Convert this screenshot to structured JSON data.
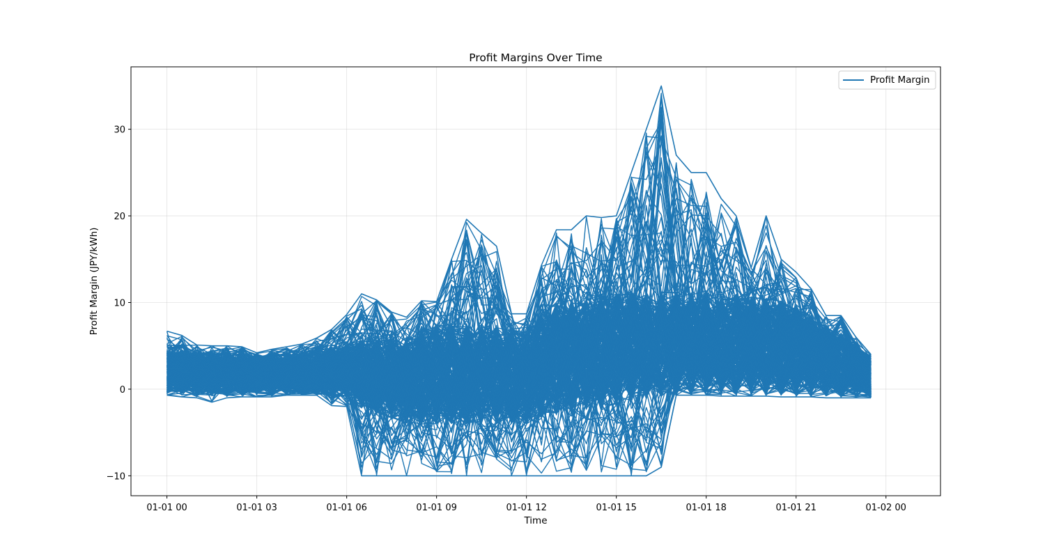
{
  "chart_data": {
    "type": "line",
    "title": "Profit Margins Over Time",
    "xlabel": "Time",
    "ylabel": "Profit Margin (JPY/kWh)",
    "xlim": [
      "2000-01-01 00:00",
      "2000-01-02 00:00"
    ],
    "ylim": [
      -12.3,
      37.2
    ],
    "x_ticks": [
      "01-01 00",
      "01-01 03",
      "01-01 06",
      "01-01 09",
      "01-01 12",
      "01-01 15",
      "01-01 18",
      "01-01 21",
      "01-02 00"
    ],
    "x_tick_hours": [
      0,
      3,
      6,
      9,
      12,
      15,
      18,
      21,
      24
    ],
    "y_ticks": [
      -10,
      0,
      10,
      20,
      30
    ],
    "y_tick_labels": [
      "−10",
      "0",
      "10",
      "20",
      "30"
    ],
    "grid": true,
    "legend_position": "top-right",
    "series": [
      {
        "name": "Profit Margin",
        "color": "#1f77b4",
        "note": "many overlapping daily profiles from 00:00 to 23:30",
        "x_hours": [
          0,
          0.5,
          1,
          1.5,
          2,
          2.5,
          3,
          3.5,
          4,
          4.5,
          5,
          5.5,
          6,
          6.5,
          7,
          7.5,
          8,
          8.5,
          9,
          9.5,
          10,
          10.5,
          11,
          11.5,
          12,
          12.5,
          13,
          13.5,
          14,
          14.5,
          15,
          15.5,
          16,
          16.5,
          17,
          17.5,
          18,
          18.5,
          19,
          19.5,
          20,
          20.5,
          21,
          21.5,
          22,
          22.5,
          23,
          23.5
        ],
        "peak_profile": [
          6.7,
          6.2,
          5.1,
          5.0,
          5.0,
          4.9,
          4.2,
          4.6,
          4.9,
          5.2,
          5.9,
          6.9,
          8.6,
          11.0,
          10.3,
          8.9,
          8.3,
          10.2,
          10.1,
          15.0,
          19.6,
          18.0,
          16.5,
          8.7,
          8.7,
          14.3,
          18.4,
          18.4,
          20.0,
          19.8,
          20.0,
          25.0,
          30.0,
          35.0,
          27.0,
          25.0,
          25.0,
          22.0,
          20.0,
          14.0,
          20.0,
          15.0,
          13.5,
          11.6,
          8.5,
          8.5,
          6.0,
          4.0
        ],
        "trough_profile": [
          -0.7,
          -0.9,
          -1.0,
          -1.5,
          -1.0,
          -0.9,
          -0.9,
          -0.9,
          -0.7,
          -0.7,
          -0.7,
          -1.9,
          -2.0,
          -10.0,
          -10.0,
          -10.0,
          -10.0,
          -10.0,
          -10.0,
          -10.0,
          -10.0,
          -10.0,
          -10.0,
          -10.0,
          -10.0,
          -10.0,
          -10.0,
          -10.0,
          -10.0,
          -10.0,
          -10.0,
          -10.0,
          -10.0,
          -9.0,
          -0.7,
          -0.7,
          -0.7,
          -0.8,
          -0.8,
          -0.8,
          -0.8,
          -0.9,
          -0.9,
          -0.9,
          -1.0,
          -1.0,
          -1.0,
          -1.0
        ],
        "band_high_profile": [
          4.4,
          4.4,
          4.3,
          4.3,
          4.2,
          4.2,
          4.1,
          4.1,
          4.2,
          4.3,
          4.5,
          4.8,
          5.2,
          5.6,
          5.7,
          5.8,
          6.0,
          7.2,
          7.5,
          7.6,
          7.6,
          7.5,
          7.4,
          7.0,
          6.8,
          8.5,
          10.0,
          10.5,
          10.8,
          11.0,
          11.2,
          11.3,
          11.3,
          11.3,
          11.2,
          11.2,
          11.4,
          11.2,
          11.0,
          10.8,
          10.5,
          10.2,
          9.8,
          8.5,
          7.5,
          6.5,
          5.5,
          4.0
        ],
        "band_low_profile": [
          -0.5,
          -0.5,
          -0.6,
          -0.6,
          -0.6,
          -0.6,
          -0.6,
          -0.6,
          -0.6,
          -0.6,
          -0.6,
          -0.7,
          -0.8,
          -2.0,
          -3.0,
          -3.5,
          -4.0,
          -4.0,
          -4.0,
          -4.0,
          -4.0,
          -4.0,
          -4.0,
          -4.0,
          -4.0,
          -3.5,
          -3.0,
          -2.8,
          -2.5,
          -2.2,
          -2.0,
          -1.5,
          -1.2,
          -1.0,
          -0.7,
          -0.7,
          -0.7,
          -0.7,
          -0.7,
          -0.7,
          -0.7,
          -0.8,
          -0.8,
          -0.8,
          -0.8,
          -0.9,
          -0.9,
          -1.0
        ]
      }
    ]
  }
}
